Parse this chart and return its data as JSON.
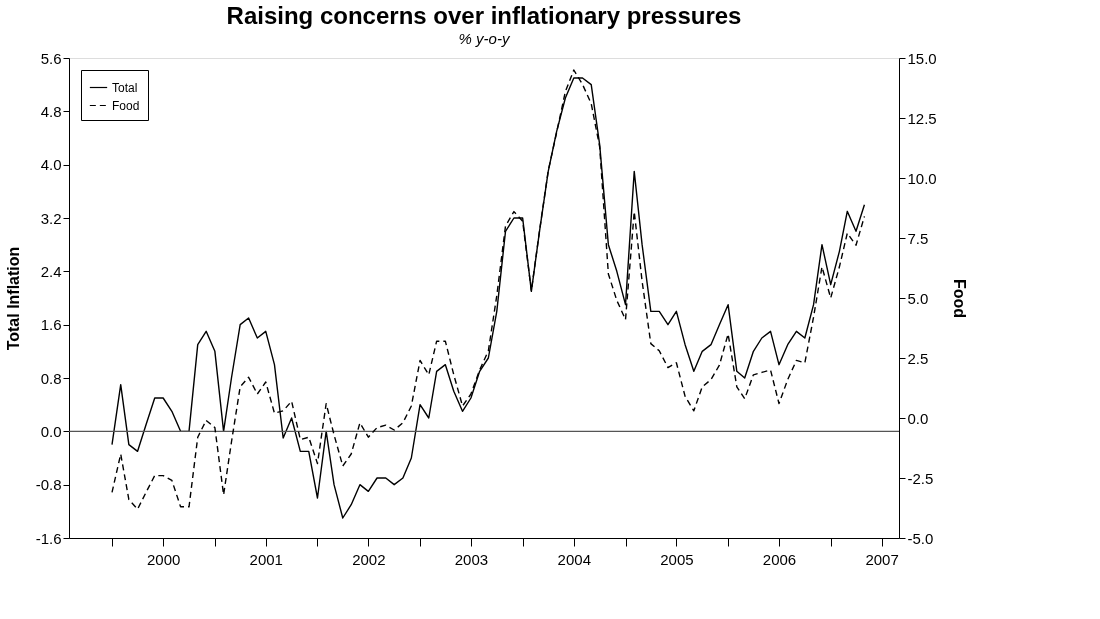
{
  "chart_data": {
    "type": "line",
    "title": "Raising concerns over inflationary pressures",
    "subtitle": "% y-o-y",
    "ylabel": "Total Inflation",
    "y2label": "Food",
    "x": [
      "2000-01",
      "2000-02",
      "2000-03",
      "2000-04",
      "2000-05",
      "2000-06",
      "2000-07",
      "2000-08",
      "2000-09",
      "2000-10",
      "2000-11",
      "2000-12",
      "2001-01",
      "2001-02",
      "2001-03",
      "2001-04",
      "2001-05",
      "2001-06",
      "2001-07",
      "2001-08",
      "2001-09",
      "2001-10",
      "2001-11",
      "2001-12",
      "2002-01",
      "2002-02",
      "2002-03",
      "2002-04",
      "2002-05",
      "2002-06",
      "2002-07",
      "2002-08",
      "2002-09",
      "2002-10",
      "2002-11",
      "2002-12",
      "2003-01",
      "2003-02",
      "2003-03",
      "2003-04",
      "2003-05",
      "2003-06",
      "2003-07",
      "2003-08",
      "2003-09",
      "2003-10",
      "2003-11",
      "2003-12",
      "2004-01",
      "2004-02",
      "2004-03",
      "2004-04",
      "2004-05",
      "2004-06",
      "2004-07",
      "2004-08",
      "2004-09",
      "2004-10",
      "2004-11",
      "2004-12",
      "2005-01",
      "2005-02",
      "2005-03",
      "2005-04",
      "2005-05",
      "2005-06",
      "2005-07",
      "2005-08",
      "2005-09",
      "2005-10",
      "2005-11",
      "2005-12",
      "2006-01",
      "2006-02",
      "2006-03",
      "2006-04",
      "2006-05",
      "2006-06",
      "2006-07",
      "2006-08",
      "2006-09",
      "2006-10",
      "2006-11",
      "2006-12",
      "2007-01",
      "2007-02",
      "2007-03",
      "2007-04",
      "2007-05"
    ],
    "series": [
      {
        "name": "Total",
        "color": "#000000",
        "line_style": "solid",
        "values": [
          -0.2,
          0.7,
          -0.2,
          -0.3,
          0.1,
          0.5,
          0.5,
          0.3,
          0.0,
          0.0,
          1.3,
          1.5,
          1.2,
          0.0,
          0.8,
          1.6,
          1.7,
          1.4,
          1.5,
          1.0,
          -0.1,
          0.2,
          -0.3,
          -0.3,
          -1.0,
          0.0,
          -0.8,
          -1.3,
          -1.1,
          -0.8,
          -0.9,
          -0.7,
          -0.7,
          -0.8,
          -0.7,
          -0.4,
          0.4,
          0.2,
          0.9,
          1.0,
          0.6,
          0.3,
          0.5,
          0.9,
          1.1,
          1.8,
          3.0,
          3.2,
          3.2,
          2.1,
          3.0,
          3.9,
          4.5,
          5.0,
          5.3,
          5.3,
          5.2,
          4.3,
          2.8,
          2.4,
          1.9,
          3.9,
          2.8,
          1.8,
          1.8,
          1.6,
          1.8,
          1.3,
          0.9,
          1.2,
          1.3,
          1.6,
          1.9,
          0.9,
          0.8,
          1.2,
          1.4,
          1.5,
          1.0,
          1.3,
          1.5,
          1.4,
          1.9,
          2.8,
          2.2,
          2.7,
          3.3,
          3.0,
          3.4
        ]
      },
      {
        "name": "Food",
        "color": "#000000",
        "line_style": "dashed",
        "axis": "y2",
        "values": [
          -3.1,
          -1.5,
          -3.4,
          -3.8,
          -3.1,
          -2.4,
          -2.4,
          -2.6,
          -3.7,
          -3.7,
          -0.8,
          -0.1,
          -0.4,
          -3.2,
          -1.0,
          1.3,
          1.7,
          1.0,
          1.5,
          0.2,
          0.3,
          0.7,
          -0.9,
          -0.8,
          -1.9,
          0.6,
          -0.7,
          -2.0,
          -1.5,
          -0.2,
          -0.8,
          -0.4,
          -0.3,
          -0.5,
          -0.2,
          0.5,
          2.4,
          1.8,
          3.2,
          3.2,
          1.8,
          0.5,
          1.0,
          2.0,
          2.8,
          5.1,
          8.0,
          8.6,
          8.2,
          5.3,
          7.8,
          10.3,
          11.9,
          13.6,
          14.5,
          13.9,
          13.1,
          11.3,
          6.0,
          4.9,
          4.1,
          8.6,
          5.7,
          3.1,
          2.8,
          2.1,
          2.3,
          0.9,
          0.3,
          1.3,
          1.6,
          2.2,
          3.5,
          1.3,
          0.8,
          1.8,
          1.9,
          2.0,
          0.6,
          1.6,
          2.4,
          2.3,
          4.2,
          6.3,
          5.0,
          6.3,
          7.7,
          7.2,
          8.4
        ]
      }
    ],
    "xlim": [
      "1999-08",
      "2007-09"
    ],
    "xticks": [
      {
        "value": "2000-01",
        "label": null
      },
      {
        "value": "2000-07",
        "label": "2000"
      },
      {
        "value": "2001-01",
        "label": null
      },
      {
        "value": "2001-07",
        "label": "2001"
      },
      {
        "value": "2002-01",
        "label": null
      },
      {
        "value": "2002-07",
        "label": "2002"
      },
      {
        "value": "2003-01",
        "label": null
      },
      {
        "value": "2003-07",
        "label": "2003"
      },
      {
        "value": "2004-01",
        "label": null
      },
      {
        "value": "2004-07",
        "label": "2004"
      },
      {
        "value": "2005-01",
        "label": null
      },
      {
        "value": "2005-07",
        "label": "2005"
      },
      {
        "value": "2006-01",
        "label": null
      },
      {
        "value": "2006-07",
        "label": "2006"
      },
      {
        "value": "2007-01",
        "label": null
      },
      {
        "value": "2007-07",
        "label": "2007"
      }
    ],
    "ylim": [
      -1.6,
      5.6
    ],
    "yticks": [
      -1.6,
      -0.8,
      {
        "value": 0,
        "label": "0.0"
      },
      0.8,
      1.6,
      2.4,
      3.2,
      {
        "value": 4,
        "label": "4.0"
      },
      4.8,
      5.6
    ],
    "y2lim": [
      -5,
      15
    ],
    "y2ticks": [
      {
        "value": -5,
        "label": "-5.0"
      },
      {
        "value": -2.5,
        "label": "-2.5"
      },
      {
        "value": 0,
        "label": "0.0"
      },
      {
        "value": 2.5,
        "label": "2.5"
      },
      {
        "value": 5,
        "label": "5.0"
      },
      {
        "value": 7.5,
        "label": "7.5"
      },
      {
        "value": 10,
        "label": "10.0"
      },
      {
        "value": 12.5,
        "label": "12.5"
      },
      {
        "value": 15,
        "label": "15.0"
      }
    ],
    "ref_lines": [
      {
        "axis": "y",
        "value": 0,
        "color": "#555555"
      }
    ],
    "grid": false,
    "legend": "top left"
  }
}
